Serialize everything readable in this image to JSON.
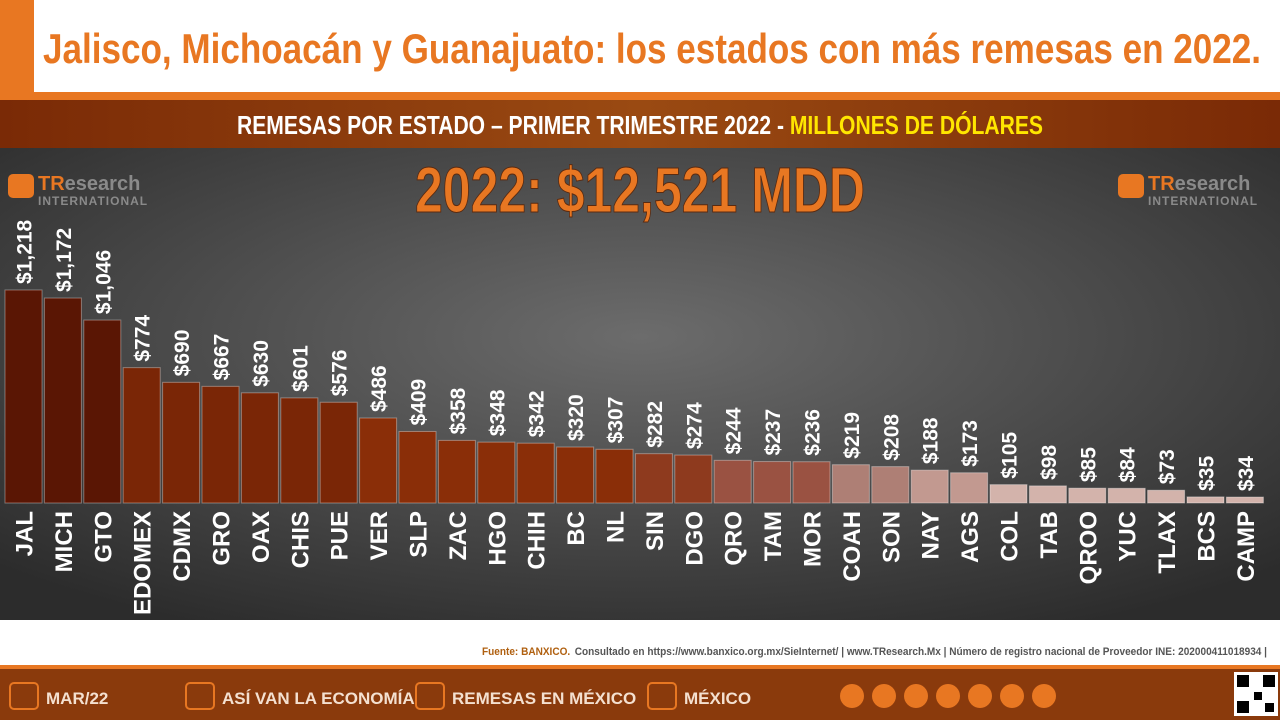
{
  "header": {
    "title": "Jalisco, Michoacán y Guanajuato: los estados con más remesas en 2022.",
    "subtitle_main": "REMESAS POR ESTADO – PRIMER TRIMESTRE 2022 - ",
    "subtitle_highlight": "MILLONES  DE DÓLARES"
  },
  "logo": {
    "prefix": "TR",
    "rest": "esearch",
    "subline": "INTERNATIONAL"
  },
  "chart_data": {
    "type": "bar",
    "total": "2022: $12,521 MDD",
    "categories": [
      "JAL",
      "MICH",
      "GTO",
      "EDOMEX",
      "CDMX",
      "GRO",
      "OAX",
      "CHIS",
      "PUE",
      "VER",
      "SLP",
      "ZAC",
      "HGO",
      "CHIH",
      "BC",
      "NL",
      "SIN",
      "DGO",
      "QRO",
      "TAM",
      "MOR",
      "COAH",
      "SON",
      "NAY",
      "AGS",
      "COL",
      "TAB",
      "QROO",
      "YUC",
      "TLAX",
      "BCS",
      "CAMP"
    ],
    "values": [
      1218,
      1172,
      1046,
      774,
      690,
      667,
      630,
      601,
      576,
      486,
      409,
      358,
      348,
      342,
      320,
      307,
      282,
      274,
      244,
      237,
      236,
      219,
      208,
      188,
      173,
      105,
      98,
      85,
      84,
      73,
      35,
      34
    ],
    "value_labels": [
      "$1,218",
      "$1,172",
      "$1,046",
      "$774",
      "$690",
      "$667",
      "$630",
      "$601",
      "$576",
      "$486",
      "$409",
      "$358",
      "$348",
      "$342",
      "$320",
      "$307",
      "$282",
      "$274",
      "$244",
      "$237",
      "$236",
      "$219",
      "$208",
      "$188",
      "$173",
      "$105",
      "$98",
      "$85",
      "$84",
      "$73",
      "$35",
      "$34"
    ],
    "colors": [
      "#5a1604",
      "#5a1604",
      "#5a1604",
      "#7a2606",
      "#7a2606",
      "#7a2606",
      "#7a2606",
      "#7a2606",
      "#7a2606",
      "#8a2e08",
      "#8a2e08",
      "#8a2e08",
      "#8a2e08",
      "#8a2e08",
      "#8a2e08",
      "#8a2e08",
      "#8e3a1e",
      "#8e3a1e",
      "#9a5242",
      "#9a5242",
      "#9a5242",
      "#ae7f75",
      "#ae7f75",
      "#c29990",
      "#c29990",
      "#d3b3ab",
      "#d3b3ab",
      "#d3b3ab",
      "#d3b3ab",
      "#d3b3ab",
      "#d3b3ab",
      "#d3b3ab"
    ]
  },
  "footer": {
    "source_label": "Fuente: BANXICO.",
    "source_text": "Consultado en https://www.banxico.org.mx/SieInternet/ | www.TResearch.Mx | Número de registro nacional de Proveedor INE: 202000411018934 |",
    "nav": [
      "MAR/22",
      "ASÍ VAN LA ECONOMÍA",
      "REMESAS  EN  MÉXICO",
      "MÉXICO"
    ]
  }
}
